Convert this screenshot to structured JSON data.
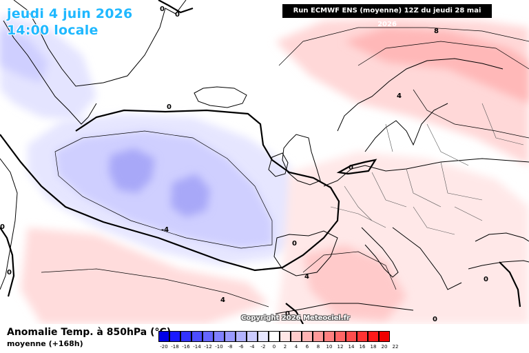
{
  "header": {
    "date_line": "jeudi 4 juin 2026",
    "time_line": "14:00 locale",
    "run_info": "Run ECMWF ENS (moyenne) 12Z du jeudi 28 mai 2026"
  },
  "map": {
    "contour_labels": [
      "0",
      "0",
      "0",
      "0",
      "0",
      "0",
      "0",
      "0",
      "0",
      "0",
      "-4",
      "4",
      "4",
      "4",
      "8"
    ],
    "colors": {
      "land_lines": "#000000",
      "zero_contour": "#000000",
      "cold": "#c8c8ff",
      "warm": "#ffd0d0"
    },
    "copyright": "Copyright 2026 Meteociel.fr"
  },
  "footer": {
    "variable": "Anomalie Temp. à 850hPa (°C)",
    "subtitle": "moyenne   (+168h)"
  },
  "legend": {
    "ticks": [
      "-20",
      "-18",
      "-16",
      "-14",
      "-12",
      "-10",
      "-8",
      "-6",
      "-4",
      "-2",
      "0",
      "2",
      "4",
      "6",
      "8",
      "10",
      "12",
      "14",
      "16",
      "18",
      "20",
      "22"
    ],
    "colors": [
      "#0000e6",
      "#1a1aff",
      "#3333ff",
      "#4d4dff",
      "#6666ff",
      "#8080ff",
      "#9999ff",
      "#b3b3ff",
      "#ccccff",
      "#e6e6ff",
      "#ffffff",
      "#ffe6e6",
      "#ffcccc",
      "#ffb3b3",
      "#ff9999",
      "#ff8080",
      "#ff6666",
      "#ff4d4d",
      "#ff3333",
      "#ff1a1a",
      "#f00000"
    ]
  }
}
